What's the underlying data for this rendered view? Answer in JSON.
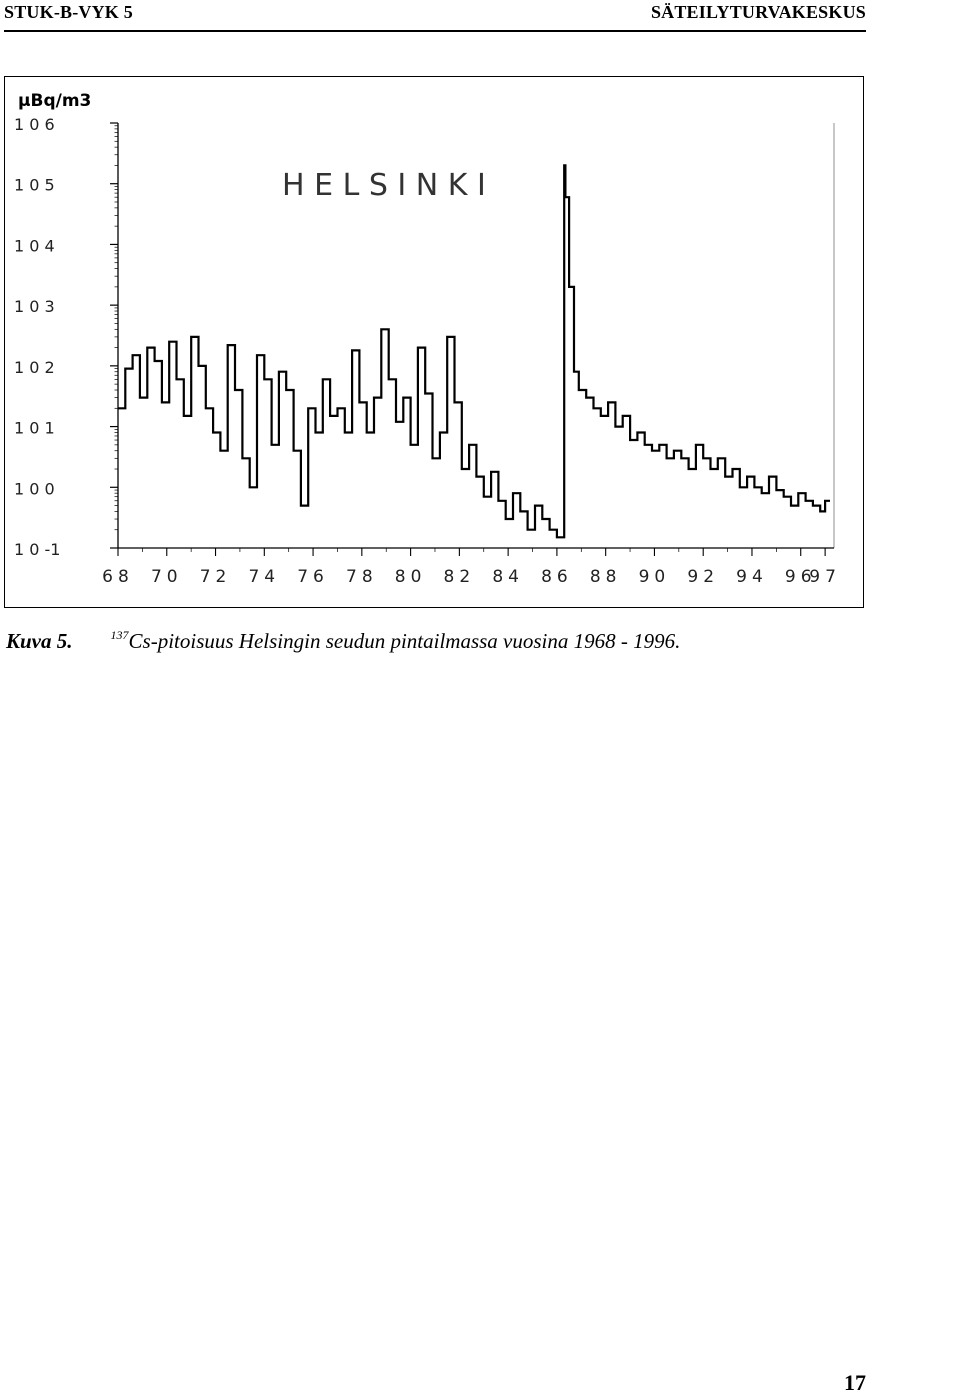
{
  "header": {
    "left": "STUK-B-VYK 5",
    "right": "SÄTEILYTURVAKESKUS"
  },
  "chart_data": {
    "type": "line",
    "title": "H E L S I N K I",
    "ylabel": "µBq/m3",
    "xlabel": "",
    "y_scale": "log",
    "ylim": [
      0.1,
      1000000
    ],
    "xlim": [
      1968,
      1997.2
    ],
    "x_ticks": [
      "68",
      "70",
      "72",
      "74",
      "76",
      "78",
      "80",
      "82",
      "84",
      "86",
      "88",
      "90",
      "92",
      "94",
      "96",
      "97"
    ],
    "y_ticks": [
      "1 0 6",
      "1 0 5",
      "1 0 4",
      "1 0 3",
      "1 0 2",
      "1 0 1",
      "1 0 0",
      "1 0 -1"
    ],
    "series": [
      {
        "name": "",
        "x": [
          1968.0,
          1968.3,
          1968.6,
          1968.9,
          1969.2,
          1969.5,
          1969.8,
          1970.1,
          1970.4,
          1970.7,
          1971.0,
          1971.3,
          1971.6,
          1971.9,
          1972.2,
          1972.5,
          1972.8,
          1973.1,
          1973.4,
          1973.7,
          1974.0,
          1974.3,
          1974.6,
          1974.9,
          1975.2,
          1975.5,
          1975.8,
          1976.1,
          1976.4,
          1976.7,
          1977.0,
          1977.3,
          1977.6,
          1977.9,
          1978.2,
          1978.5,
          1978.8,
          1979.1,
          1979.4,
          1979.7,
          1980.0,
          1980.3,
          1980.6,
          1980.9,
          1981.2,
          1981.5,
          1981.8,
          1982.1,
          1982.4,
          1982.7,
          1983.0,
          1983.3,
          1983.6,
          1983.9,
          1984.2,
          1984.5,
          1984.8,
          1985.1,
          1985.4,
          1985.7,
          1986.0,
          1986.3,
          1986.35,
          1986.5,
          1986.7,
          1986.9,
          1987.2,
          1987.5,
          1987.8,
          1988.1,
          1988.4,
          1988.7,
          1989.0,
          1989.3,
          1989.6,
          1989.9,
          1990.2,
          1990.5,
          1990.8,
          1991.1,
          1991.4,
          1991.7,
          1992.0,
          1992.3,
          1992.6,
          1992.9,
          1993.2,
          1993.5,
          1993.8,
          1994.1,
          1994.4,
          1994.7,
          1995.0,
          1995.3,
          1995.6,
          1995.9,
          1996.2,
          1996.5,
          1996.8,
          1997.0
        ],
        "values": [
          20,
          90,
          150,
          30,
          200,
          120,
          25,
          250,
          60,
          15,
          300,
          100,
          20,
          8,
          4,
          220,
          40,
          3,
          1,
          150,
          60,
          5,
          80,
          40,
          4,
          0.5,
          20,
          8,
          60,
          15,
          20,
          8,
          180,
          25,
          8,
          30,
          400,
          60,
          12,
          30,
          5,
          200,
          35,
          3,
          8,
          300,
          25,
          2,
          5,
          1.5,
          0.7,
          1.8,
          0.6,
          0.3,
          0.8,
          0.4,
          0.2,
          0.5,
          0.3,
          0.2,
          0.15,
          200000,
          60000,
          2000,
          80,
          40,
          30,
          20,
          15,
          25,
          10,
          15,
          6,
          8,
          5,
          4,
          5,
          3,
          4,
          3,
          2,
          5,
          3,
          2,
          3,
          1.5,
          2,
          1,
          1.5,
          1,
          0.8,
          1.5,
          0.9,
          0.7,
          0.5,
          0.8,
          0.6,
          0.5,
          0.4,
          0.6
        ]
      }
    ]
  },
  "caption": {
    "label": "Kuva 5.",
    "superscript": "137",
    "text": "Cs-pitoisuus Helsingin seudun pintailmassa vuosina 1968 - 1996."
  },
  "page_number": "17"
}
